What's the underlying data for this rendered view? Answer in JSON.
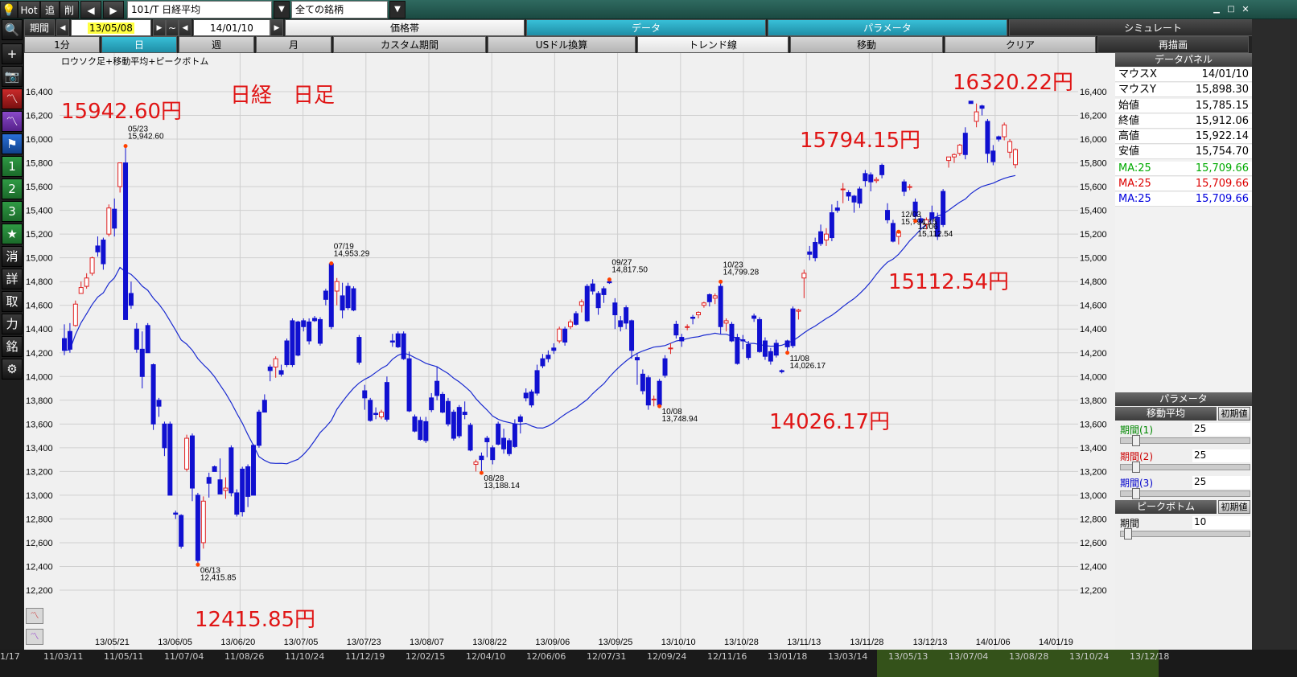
{
  "top": {
    "hot": "Hot",
    "tsui": "追",
    "sakujo": "削",
    "symbol": "101/T 日経平均",
    "filter": "全ての銘柄",
    "win_min": "▁",
    "win_max": "□",
    "win_close": "✕"
  },
  "period": {
    "label": "期間",
    "from": "13/05/08",
    "tilde": "~",
    "to": "14/01/10"
  },
  "menu1": [
    "価格帯",
    "データ",
    "パラメータ",
    "シミュレート"
  ],
  "menu2": [
    "1分",
    "日",
    "週",
    "月",
    "カスタム期間",
    "USドル換算",
    "トレンド線",
    "移動",
    "クリア",
    "再描画"
  ],
  "left_tools": [
    {
      "icon": "search-icon",
      "glyph": "🔍"
    },
    {
      "icon": "plus-icon",
      "glyph": "+"
    },
    {
      "icon": "camera-icon",
      "glyph": "📷"
    },
    {
      "icon": "chart-red-icon",
      "glyph": "〽"
    },
    {
      "icon": "chart-purple-icon",
      "glyph": "〽"
    },
    {
      "icon": "flag-icon",
      "glyph": "⚑"
    },
    {
      "icon": "num1-icon",
      "glyph": "1"
    },
    {
      "icon": "num2-icon",
      "glyph": "2"
    },
    {
      "icon": "num3-icon",
      "glyph": "3"
    },
    {
      "icon": "star-icon",
      "glyph": "★"
    },
    {
      "icon": "kesu-icon",
      "glyph": "消"
    },
    {
      "icon": "shi-icon",
      "glyph": "詳"
    },
    {
      "icon": "tori-icon",
      "glyph": "取"
    },
    {
      "icon": "chikara-icon",
      "glyph": "力"
    },
    {
      "icon": "mei-icon",
      "glyph": "銘"
    },
    {
      "icon": "gear-icon",
      "glyph": "⚙"
    }
  ],
  "chart": {
    "subtitle": "ロウソク足+移動平均+ピークボトム",
    "title": "日経　日足",
    "annotations": [
      {
        "text": "15942.60円",
        "key": "a1"
      },
      {
        "text": "16320.22円",
        "key": "a2"
      },
      {
        "text": "15794.15円",
        "key": "a3"
      },
      {
        "text": "15112.54円",
        "key": "a4"
      },
      {
        "text": "14026.17円",
        "key": "a5"
      },
      {
        "text": "12415.85円",
        "key": "a6"
      }
    ],
    "y_ticks": [
      "16,400",
      "16,200",
      "16,000",
      "15,800",
      "15,600",
      "15,400",
      "15,200",
      "15,000",
      "14,800",
      "14,600",
      "14,400",
      "14,200",
      "14,000",
      "13,800",
      "13,600",
      "13,400",
      "13,200",
      "13,000",
      "12,800",
      "12,600",
      "12,400",
      "12,200"
    ],
    "x_ticks": [
      "13/05/21",
      "13/06/05",
      "13/06/20",
      "13/07/05",
      "13/07/23",
      "13/08/07",
      "13/08/22",
      "13/09/06",
      "13/09/25",
      "13/10/10",
      "13/10/28",
      "13/11/13",
      "13/11/28",
      "13/12/13",
      "14/01/06",
      "14/01/19"
    ],
    "peaks": [
      {
        "date": "05/23",
        "value": "15,942.60"
      },
      {
        "date": "06/13",
        "value": "12,415.85"
      },
      {
        "date": "07/19",
        "value": "14,953.29"
      },
      {
        "date": "08/28",
        "value": "13,188.14"
      },
      {
        "date": "09/27",
        "value": "14,817.50"
      },
      {
        "date": "10/08",
        "value": "13,748.94"
      },
      {
        "date": "10/23",
        "value": "14,799.28"
      },
      {
        "date": "11/08",
        "value": "14,026.17"
      },
      {
        "date": "12/03",
        "value": "15,794.15"
      },
      {
        "date": "12/06",
        "value": "15,112.54"
      }
    ]
  },
  "chart_data": {
    "type": "candlestick",
    "title": "日経　日足",
    "subtitle": "ロウソク足+移動平均+ピークボトム",
    "ylim": [
      12100,
      16500
    ],
    "ma_period": 25,
    "candles": [
      [
        14320,
        14440,
        14180,
        14220
      ],
      [
        14380,
        14450,
        14200,
        14230
      ],
      [
        14430,
        14640,
        14420,
        14610
      ],
      [
        14700,
        14800,
        14700,
        14750
      ],
      [
        14760,
        14870,
        14740,
        14830
      ],
      [
        14870,
        15010,
        14850,
        15000
      ],
      [
        15100,
        15180,
        15010,
        15050
      ],
      [
        15150,
        15170,
        14900,
        14950
      ],
      [
        15200,
        15450,
        15180,
        15420
      ],
      [
        15410,
        15500,
        15180,
        15250
      ],
      [
        15600,
        15800,
        15550,
        15800
      ],
      [
        15800,
        15942,
        14480,
        14480
      ],
      [
        14700,
        14800,
        14570,
        14600
      ],
      [
        14400,
        14450,
        14200,
        14230
      ],
      [
        14230,
        14380,
        13900,
        14000
      ],
      [
        14430,
        14450,
        14200,
        14200
      ],
      [
        14100,
        14110,
        13550,
        13600
      ],
      [
        13800,
        13820,
        13660,
        13750
      ],
      [
        13600,
        13620,
        13330,
        13400
      ],
      [
        13600,
        13620,
        13000,
        13000
      ],
      [
        12850,
        12870,
        12800,
        12840
      ],
      [
        12830,
        12840,
        12550,
        12570
      ],
      [
        13220,
        13510,
        13200,
        13480
      ],
      [
        13500,
        13520,
        12950,
        13060
      ],
      [
        13000,
        13020,
        12415,
        12450
      ],
      [
        12600,
        12990,
        12550,
        12950
      ],
      [
        13150,
        13190,
        12980,
        13100
      ],
      [
        13240,
        13250,
        13200,
        13200
      ],
      [
        13130,
        13310,
        13010,
        13010
      ],
      [
        13040,
        13150,
        12970,
        13060
      ],
      [
        13400,
        13420,
        12990,
        13020
      ],
      [
        13020,
        13050,
        12820,
        12840
      ],
      [
        13220,
        13240,
        12820,
        12860
      ],
      [
        13240,
        13260,
        12900,
        12990
      ],
      [
        13420,
        13430,
        13000,
        13000
      ],
      [
        13700,
        13720,
        13400,
        13420
      ],
      [
        13800,
        13850,
        13700,
        13700
      ],
      [
        14080,
        14100,
        13960,
        14050
      ],
      [
        14080,
        14170,
        13990,
        14150
      ],
      [
        14050,
        14100,
        14000,
        14020
      ],
      [
        14300,
        14320,
        14080,
        14100
      ],
      [
        14470,
        14490,
        14080,
        14100
      ],
      [
        14460,
        14470,
        14170,
        14180
      ],
      [
        14470,
        14490,
        14380,
        14420
      ],
      [
        14460,
        14490,
        14270,
        14300
      ],
      [
        14490,
        14510,
        14460,
        14470
      ],
      [
        14480,
        14500,
        14260,
        14280
      ],
      [
        14720,
        14740,
        14600,
        14650
      ],
      [
        14950,
        14953,
        14400,
        14420
      ],
      [
        14720,
        14830,
        14600,
        14800
      ],
      [
        14680,
        14790,
        14490,
        14560
      ],
      [
        14760,
        14790,
        14560,
        14580
      ],
      [
        14740,
        14760,
        14550,
        14560
      ],
      [
        14330,
        14350,
        14100,
        14120
      ],
      [
        13880,
        13930,
        13720,
        13820
      ],
      [
        13800,
        13820,
        13620,
        13630
      ],
      [
        13690,
        13740,
        13640,
        13680
      ],
      [
        13660,
        13720,
        13640,
        13700
      ],
      [
        13950,
        14000,
        13620,
        13640
      ],
      [
        14300,
        14360,
        14250,
        14290
      ],
      [
        14360,
        14380,
        14240,
        14250
      ],
      [
        14360,
        14380,
        14140,
        14150
      ],
      [
        14150,
        14210,
        13700,
        13710
      ],
      [
        13660,
        13680,
        13530,
        13540
      ],
      [
        13630,
        13660,
        13460,
        13470
      ],
      [
        13620,
        13660,
        13440,
        13460
      ],
      [
        13820,
        13860,
        13700,
        13720
      ],
      [
        13960,
        14080,
        13800,
        13840
      ],
      [
        13850,
        13870,
        13690,
        13700
      ],
      [
        13790,
        13820,
        13580,
        13600
      ],
      [
        13700,
        13720,
        13460,
        13480
      ],
      [
        13740,
        13760,
        13480,
        13500
      ],
      [
        13700,
        13790,
        13640,
        13680
      ],
      [
        13590,
        13610,
        13370,
        13380
      ],
      [
        13260,
        13300,
        13200,
        13280
      ],
      [
        13330,
        13360,
        13188,
        13300
      ],
      [
        13480,
        13500,
        13320,
        13450
      ],
      [
        13400,
        13420,
        13260,
        13300
      ],
      [
        13600,
        13620,
        13420,
        13430
      ],
      [
        13480,
        13560,
        13350,
        13390
      ],
      [
        13460,
        13480,
        13330,
        13350
      ],
      [
        13600,
        13640,
        13400,
        13410
      ],
      [
        13660,
        13680,
        13520,
        13620
      ],
      [
        13860,
        13900,
        13790,
        13820
      ],
      [
        13870,
        13890,
        13740,
        13760
      ],
      [
        14050,
        14100,
        13840,
        13860
      ],
      [
        14150,
        14190,
        14070,
        14090
      ],
      [
        14180,
        14220,
        14120,
        14150
      ],
      [
        14240,
        14280,
        14190,
        14220
      ],
      [
        14300,
        14420,
        14280,
        14400
      ],
      [
        14400,
        14420,
        14260,
        14290
      ],
      [
        14420,
        14480,
        14400,
        14460
      ],
      [
        14530,
        14550,
        14430,
        14440
      ],
      [
        14600,
        14650,
        14540,
        14630
      ],
      [
        14760,
        14780,
        14460,
        14470
      ],
      [
        14780,
        14820,
        14690,
        14720
      ],
      [
        14700,
        14720,
        14520,
        14580
      ],
      [
        14740,
        14760,
        14620,
        14690
      ],
      [
        14800,
        14817,
        14780,
        14790
      ],
      [
        14620,
        14660,
        14400,
        14520
      ],
      [
        14470,
        14510,
        14380,
        14420
      ],
      [
        14580,
        14600,
        14400,
        14450
      ],
      [
        14470,
        14480,
        14150,
        14220
      ],
      [
        14160,
        14190,
        13930,
        14140
      ],
      [
        14020,
        14060,
        13850,
        13880
      ],
      [
        13990,
        14010,
        13720,
        13760
      ],
      [
        13810,
        13840,
        13749,
        13810
      ],
      [
        13960,
        13980,
        13750,
        13760
      ],
      [
        14150,
        14180,
        13990,
        14010
      ],
      [
        14240,
        14280,
        14190,
        14240
      ],
      [
        14440,
        14470,
        14320,
        14350
      ],
      [
        14330,
        14360,
        14250,
        14300
      ],
      [
        14420,
        14440,
        14390,
        14420
      ],
      [
        14500,
        14520,
        14440,
        14490
      ],
      [
        14520,
        14550,
        14490,
        14540
      ],
      [
        14600,
        14630,
        14580,
        14620
      ],
      [
        14690,
        14700,
        14590,
        14630
      ],
      [
        14660,
        14700,
        14610,
        14680
      ],
      [
        14760,
        14799,
        14360,
        14420
      ],
      [
        14450,
        14490,
        14380,
        14470
      ],
      [
        14440,
        14460,
        14290,
        14300
      ],
      [
        14330,
        14360,
        14100,
        14110
      ],
      [
        14310,
        14350,
        14230,
        14300
      ],
      [
        14270,
        14300,
        14140,
        14160
      ],
      [
        14510,
        14530,
        14460,
        14490
      ],
      [
        14480,
        14500,
        14200,
        14210
      ],
      [
        14300,
        14330,
        14140,
        14170
      ],
      [
        14210,
        14240,
        14100,
        14130
      ],
      [
        14280,
        14310,
        14160,
        14180
      ],
      [
        14050,
        14060,
        14026,
        14040
      ],
      [
        14300,
        14310,
        14200,
        14250
      ],
      [
        14570,
        14590,
        14240,
        14260
      ],
      [
        14550,
        14570,
        14480,
        14560
      ],
      [
        14830,
        14900,
        14660,
        14870
      ],
      [
        15050,
        15100,
        14980,
        15030
      ],
      [
        15130,
        15170,
        14970,
        15000
      ],
      [
        15220,
        15280,
        15100,
        15120
      ],
      [
        15150,
        15250,
        15100,
        15200
      ],
      [
        15380,
        15450,
        15140,
        15170
      ],
      [
        15420,
        15480,
        15380,
        15400
      ],
      [
        15580,
        15630,
        15460,
        15580
      ],
      [
        15550,
        15570,
        15480,
        15520
      ],
      [
        15520,
        15530,
        15380,
        15470
      ],
      [
        15580,
        15600,
        15420,
        15460
      ],
      [
        15710,
        15740,
        15600,
        15650
      ],
      [
        15700,
        15720,
        15560,
        15640
      ],
      [
        15650,
        15680,
        15630,
        15660
      ],
      [
        15780,
        15794,
        15670,
        15700
      ],
      [
        15400,
        15460,
        15290,
        15320
      ],
      [
        15290,
        15320,
        15130,
        15140
      ],
      [
        15180,
        15220,
        15112,
        15220
      ],
      [
        15640,
        15660,
        15520,
        15560
      ],
      [
        15600,
        15620,
        15570,
        15600
      ],
      [
        15470,
        15500,
        15310,
        15350
      ],
      [
        15330,
        15350,
        15250,
        15300
      ],
      [
        15280,
        15340,
        15240,
        15320
      ],
      [
        15380,
        15440,
        15290,
        15330
      ],
      [
        15340,
        15380,
        15150,
        15180
      ],
      [
        15560,
        15580,
        15260,
        15280
      ],
      [
        15820,
        15850,
        15760,
        15850
      ],
      [
        15850,
        15880,
        15800,
        15870
      ],
      [
        15880,
        15960,
        15860,
        15950
      ],
      [
        16050,
        16100,
        15830,
        15870
      ],
      [
        16320,
        16320,
        16300,
        16300
      ],
      [
        16150,
        16300,
        16100,
        16230
      ],
      [
        16280,
        16290,
        16200,
        16260
      ],
      [
        16150,
        16170,
        15800,
        15880
      ],
      [
        15900,
        15950,
        15780,
        15810
      ],
      [
        16020,
        16030,
        15980,
        16000
      ],
      [
        16020,
        16140,
        15990,
        16120
      ],
      [
        15890,
        16000,
        15840,
        15980
      ],
      [
        15785,
        15922,
        15755,
        15912
      ]
    ]
  },
  "panel": {
    "header": "データパネル",
    "rows": [
      {
        "label": "マウスX",
        "value": "14/01/10"
      },
      {
        "label": "マウスY",
        "value": "15,898.30"
      },
      {
        "label": "始値",
        "value": "15,785.15"
      },
      {
        "label": "終値",
        "value": "15,912.06"
      },
      {
        "label": "高値",
        "value": "15,922.14"
      },
      {
        "label": "安値",
        "value": "15,754.70"
      }
    ],
    "ma_rows": [
      {
        "label": "MA:25",
        "value": "15,709.66",
        "color": "#00aa00"
      },
      {
        "label": "MA:25",
        "value": "15,709.66",
        "color": "#dd0000"
      },
      {
        "label": "MA:25",
        "value": "15,709.66",
        "color": "#0000dd"
      }
    ],
    "param_header": "パラメータ",
    "ma_header": "移動平均",
    "reset": "初期値",
    "periods": [
      {
        "label": "期間(1)",
        "value": "25",
        "color": "#008800"
      },
      {
        "label": "期間(2)",
        "value": "25",
        "color": "#cc0000"
      },
      {
        "label": "期間(3)",
        "value": "25",
        "color": "#0000cc"
      }
    ],
    "pb_header": "ピークボトム",
    "pb_period_label": "期間",
    "pb_period_value": "10"
  },
  "bottom_axis": [
    "11/03/11",
    "11/05/11",
    "11/07/04",
    "11/08/26",
    "11/10/24",
    "11/12/19",
    "12/02/15",
    "12/04/10",
    "12/06/06",
    "12/07/31",
    "12/09/24",
    "12/11/16",
    "13/01/18",
    "13/03/14",
    "13/05/13",
    "13/07/04",
    "13/08/28",
    "13/10/24",
    "13/12/18"
  ],
  "bottom_axis_start": "1/17"
}
